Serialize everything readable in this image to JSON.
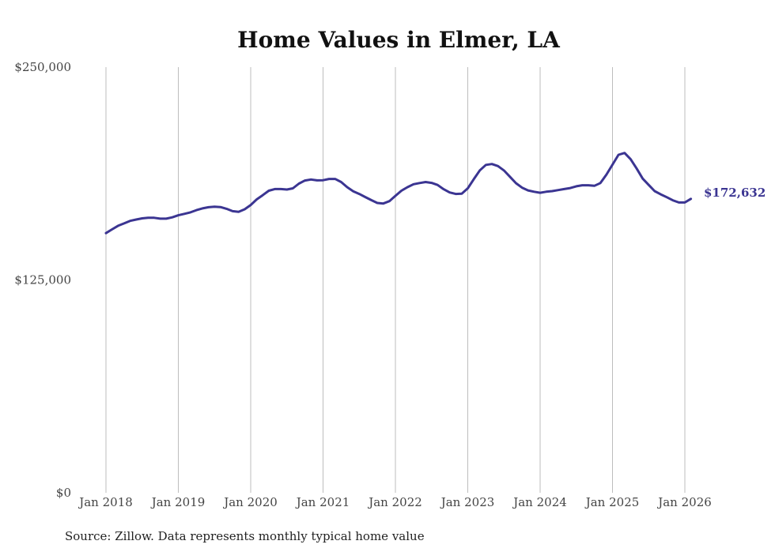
{
  "chart_data": {
    "type": "line",
    "title": "Home Values in Elmer, LA",
    "source": "Source: Zillow. Data represents monthly typical home value",
    "xlabel": "",
    "ylabel": "",
    "ylim": [
      0,
      250000
    ],
    "yticks": [
      {
        "value": 0,
        "label": "$0"
      },
      {
        "value": 125000,
        "label": "$125,000"
      },
      {
        "value": 250000,
        "label": "$250,000"
      }
    ],
    "xticks": [
      {
        "value": 2018.0,
        "label": "Jan 2018"
      },
      {
        "value": 2019.0,
        "label": "Jan 2019"
      },
      {
        "value": 2020.0,
        "label": "Jan 2020"
      },
      {
        "value": 2021.0,
        "label": "Jan 2021"
      },
      {
        "value": 2022.0,
        "label": "Jan 2022"
      },
      {
        "value": 2023.0,
        "label": "Jan 2023"
      },
      {
        "value": 2024.0,
        "label": "Jan 2024"
      },
      {
        "value": 2025.0,
        "label": "Jan 2025"
      },
      {
        "value": 2026.0,
        "label": "Jan 2026"
      }
    ],
    "xlim": [
      2018.0,
      2026.0
    ],
    "grid": "vertical",
    "line_color": "#3b3592",
    "end_label": "$172,632",
    "series": [
      {
        "name": "Home value",
        "x": [
          2018.0,
          2018.083,
          2018.167,
          2018.25,
          2018.333,
          2018.417,
          2018.5,
          2018.583,
          2018.667,
          2018.75,
          2018.833,
          2018.917,
          2019.0,
          2019.083,
          2019.167,
          2019.25,
          2019.333,
          2019.417,
          2019.5,
          2019.583,
          2019.667,
          2019.75,
          2019.833,
          2019.917,
          2020.0,
          2020.083,
          2020.167,
          2020.25,
          2020.333,
          2020.417,
          2020.5,
          2020.583,
          2020.667,
          2020.75,
          2020.833,
          2020.917,
          2021.0,
          2021.083,
          2021.167,
          2021.25,
          2021.333,
          2021.417,
          2021.5,
          2021.583,
          2021.667,
          2021.75,
          2021.833,
          2021.917,
          2022.0,
          2022.083,
          2022.167,
          2022.25,
          2022.333,
          2022.417,
          2022.5,
          2022.583,
          2022.667,
          2022.75,
          2022.833,
          2022.917,
          2023.0,
          2023.083,
          2023.167,
          2023.25,
          2023.333,
          2023.417,
          2023.5,
          2023.583,
          2023.667,
          2023.75,
          2023.833,
          2023.917,
          2024.0,
          2024.083,
          2024.167,
          2024.25,
          2024.333,
          2024.417,
          2024.5,
          2024.583,
          2024.667,
          2024.75,
          2024.833,
          2024.917,
          2025.0,
          2025.083,
          2025.167,
          2025.25,
          2025.333,
          2025.417,
          2025.5,
          2025.583,
          2025.667,
          2025.75,
          2025.833,
          2025.917,
          2026.0,
          2026.083
        ],
        "values": [
          152500,
          154700,
          156800,
          158200,
          159700,
          160500,
          161200,
          161500,
          161500,
          161000,
          161000,
          161800,
          163000,
          163800,
          164700,
          166000,
          167000,
          167700,
          168000,
          167800,
          166800,
          165400,
          165000,
          166500,
          169000,
          172300,
          174800,
          177400,
          178400,
          178400,
          178100,
          178800,
          181600,
          183400,
          184000,
          183500,
          183600,
          184300,
          184300,
          182500,
          179500,
          177100,
          175500,
          173700,
          171900,
          170200,
          169900,
          171300,
          174400,
          177400,
          179500,
          181200,
          181900,
          182500,
          182000,
          180800,
          178300,
          176400,
          175500,
          175700,
          178800,
          184200,
          189400,
          192600,
          193100,
          191900,
          189300,
          185600,
          181800,
          179200,
          177600,
          176800,
          176200,
          176800,
          177200,
          177800,
          178400,
          179000,
          180000,
          180600,
          180600,
          180300,
          181900,
          186900,
          192700,
          198500,
          199600,
          195900,
          190500,
          184500,
          180800,
          177200,
          175300,
          173600,
          171800,
          170500,
          170500,
          172632
        ]
      }
    ]
  }
}
